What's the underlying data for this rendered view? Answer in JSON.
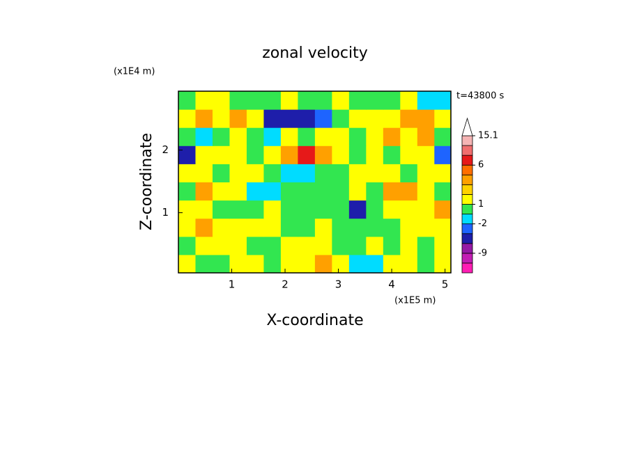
{
  "chart_data": {
    "type": "contour",
    "title": "zonal velocity",
    "subtitle": "t=43800 s",
    "x_label": "X-coordinate",
    "y_label": "Z-coordinate",
    "x_unit": "(x1E5 m)",
    "y_unit": "(x1E4 m)",
    "xlim": [
      0,
      5.11
    ],
    "ylim": [
      0.04,
      2.94
    ],
    "xticks": [
      1,
      2,
      3,
      4,
      5
    ],
    "yticks": [
      1,
      2
    ],
    "colorbar": {
      "levels": [
        -12,
        -9,
        -6,
        -3,
        -2,
        -1,
        1,
        2,
        3,
        4,
        6,
        9,
        12,
        15.1
      ],
      "colors": [
        "#ff1eb4",
        "#c31eb4",
        "#9619a5",
        "#1e1eaa",
        "#1e64ff",
        "#00dcff",
        "#32e650",
        "#ffff00",
        "#ffd200",
        "#ffa000",
        "#ff6e00",
        "#e61919",
        "#f06e6e",
        "#f5b4b4",
        "#ffffff"
      ],
      "ticks": [
        -9,
        -2,
        1,
        6,
        15.1
      ]
    },
    "field": {
      "x_edges": [
        0,
        0.32,
        0.64,
        0.96,
        1.28,
        1.6,
        1.92,
        2.24,
        2.56,
        2.88,
        3.2,
        3.52,
        3.84,
        4.16,
        4.48,
        4.8,
        5.11
      ],
      "z_edges": [
        0.04,
        0.33,
        0.62,
        0.91,
        1.2,
        1.49,
        1.78,
        2.07,
        2.36,
        2.65,
        2.94
      ],
      "values": [
        [
          1.5,
          0,
          0,
          1.5,
          1.5,
          0,
          1.5,
          1.5,
          3.5,
          1.5,
          -1.5,
          -1.5,
          1.5,
          1.5,
          0,
          1.5
        ],
        [
          0,
          1.5,
          1.5,
          1.5,
          0,
          0,
          1.5,
          1.5,
          1.5,
          0,
          0,
          1.5,
          0,
          1.5,
          0,
          1.5
        ],
        [
          1.5,
          3.5,
          1.5,
          1.5,
          1.5,
          1.5,
          0,
          0,
          1.5,
          0,
          0,
          0,
          0,
          1.5,
          1.5,
          1.5
        ],
        [
          1.5,
          1.5,
          0,
          0,
          0,
          1.5,
          0,
          0,
          0,
          0,
          -4.5,
          0,
          1.5,
          1.5,
          1.5,
          3.5
        ],
        [
          0,
          3.5,
          1.5,
          1.5,
          -1.5,
          -1.5,
          0,
          0,
          0,
          0,
          1.5,
          0,
          3.5,
          3.5,
          1.5,
          0
        ],
        [
          1.5,
          1.5,
          0,
          1.5,
          1.5,
          0,
          -1.5,
          -1.5,
          0,
          0,
          1.5,
          1.5,
          1.5,
          0,
          1.5,
          1.5
        ],
        [
          -4.5,
          1.5,
          1.5,
          1.5,
          0,
          1.5,
          3.5,
          7.5,
          3.5,
          1.5,
          0,
          1.5,
          0,
          1.5,
          1.5,
          -2.5
        ],
        [
          0,
          -1.5,
          0,
          1.5,
          0,
          -1.5,
          1.5,
          0,
          1.5,
          1.5,
          0,
          1.5,
          3.5,
          1.5,
          3.5,
          0
        ],
        [
          1.5,
          3.5,
          1.5,
          3.5,
          1.5,
          -4.5,
          -4.5,
          -4.5,
          -2.5,
          0,
          1.5,
          1.5,
          1.5,
          3.5,
          3.5,
          1.5
        ],
        [
          0,
          1.5,
          1.5,
          0,
          0,
          0,
          1.5,
          0,
          0,
          1.5,
          0,
          0,
          0,
          1.5,
          -1.5,
          -1.5
        ]
      ]
    }
  }
}
